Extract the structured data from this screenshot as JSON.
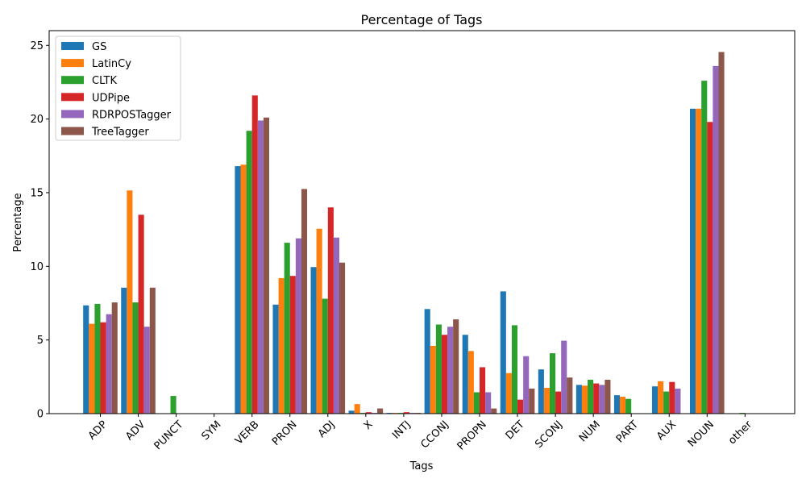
{
  "chart_data": {
    "type": "bar",
    "title": "Percentage of Tags",
    "xlabel": "Tags",
    "ylabel": "Percentage",
    "ylim": [
      0,
      26
    ],
    "yticks": [
      0,
      5,
      10,
      15,
      20,
      25
    ],
    "legend_position": "top-left",
    "grid": false,
    "categories": [
      "ADP",
      "ADV",
      "PUNCT",
      "SYM",
      "VERB",
      "PRON",
      "ADJ",
      "X",
      "INTJ",
      "CCONJ",
      "PROPN",
      "DET",
      "SCONJ",
      "NUM",
      "PART",
      "AUX",
      "NOUN",
      "other"
    ],
    "series": [
      {
        "name": "GS",
        "color": "#1f77b4",
        "values": [
          7.35,
          8.55,
          0,
          0,
          16.8,
          7.4,
          9.95,
          0.2,
          0.05,
          7.1,
          5.35,
          8.3,
          3.0,
          1.95,
          1.25,
          1.85,
          20.7,
          0
        ]
      },
      {
        "name": "LatinCy",
        "color": "#ff7f0e",
        "values": [
          6.1,
          15.15,
          0,
          0,
          16.9,
          9.2,
          12.55,
          0.65,
          0.05,
          4.6,
          4.25,
          2.75,
          1.75,
          1.9,
          1.15,
          2.2,
          20.7,
          0
        ]
      },
      {
        "name": "CLTK",
        "color": "#2ca02c",
        "values": [
          7.45,
          7.55,
          1.2,
          0,
          19.2,
          11.6,
          7.8,
          0.05,
          0.05,
          6.05,
          1.45,
          6.0,
          4.1,
          2.3,
          1.0,
          1.5,
          22.6,
          0.05
        ]
      },
      {
        "name": "UDPipe",
        "color": "#d62728",
        "values": [
          6.2,
          13.5,
          0,
          0,
          21.6,
          9.35,
          14.0,
          0.1,
          0.1,
          5.35,
          3.15,
          0.95,
          1.5,
          2.05,
          0,
          2.15,
          19.8,
          0
        ]
      },
      {
        "name": "RDRPOSTagger",
        "color": "#9467bd",
        "values": [
          6.75,
          5.9,
          0,
          0,
          19.9,
          11.9,
          11.95,
          0.05,
          0.05,
          5.9,
          1.45,
          3.9,
          4.95,
          1.95,
          0,
          1.7,
          23.6,
          0
        ]
      },
      {
        "name": "TreeTagger",
        "color": "#8c564b",
        "values": [
          7.55,
          8.55,
          0,
          0,
          20.1,
          15.25,
          10.25,
          0.35,
          0.05,
          6.4,
          0.35,
          1.7,
          2.45,
          2.3,
          0,
          0,
          24.55,
          0
        ]
      }
    ]
  }
}
